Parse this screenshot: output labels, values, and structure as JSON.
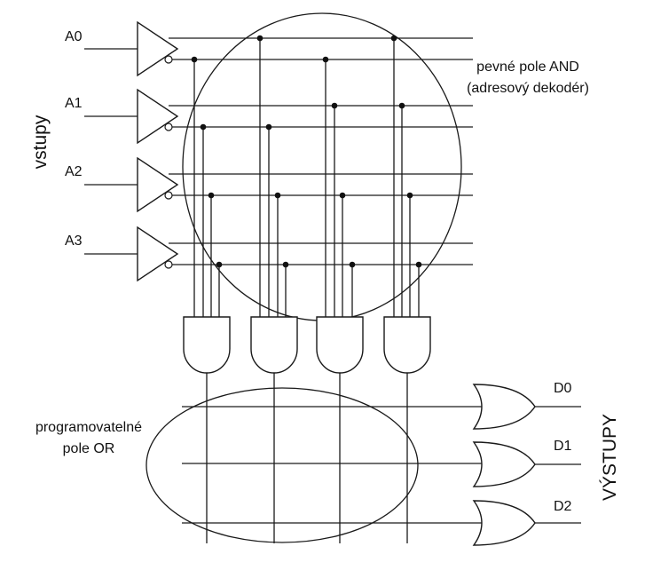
{
  "inputs": {
    "side_label": "vstupy",
    "names": [
      "A0",
      "A1",
      "A2",
      "A3"
    ]
  },
  "outputs": {
    "side_label": "VÝSTUPY",
    "names": [
      "D0",
      "D1",
      "D2"
    ]
  },
  "and_array": {
    "label_line1": "pevné pole AND",
    "label_line2": "(adresový dekodér)"
  },
  "or_array": {
    "label_line1": "programovatelné",
    "label_line2": "pole OR"
  }
}
